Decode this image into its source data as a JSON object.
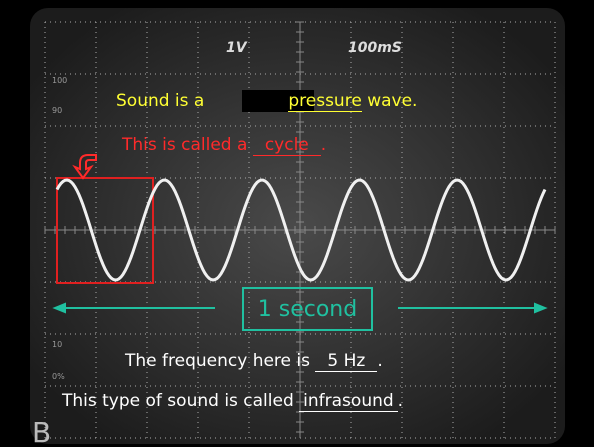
{
  "screen": {
    "volts": "1V",
    "time": "100mS",
    "scale_labels": [
      "100",
      "90",
      "10",
      "0%"
    ]
  },
  "line1": {
    "prefix": "Sound is a",
    "answer": "pressure",
    "suffix": "wave."
  },
  "line2": {
    "prefix": "This is called a",
    "answer": "cycle",
    "suffix": "."
  },
  "duration_label": "1 second",
  "line3": {
    "prefix": "The frequency here is",
    "answer": "5 Hz",
    "suffix": "."
  },
  "line4": {
    "prefix": "This type of sound is called",
    "answer": "infrasound",
    "suffix": "."
  },
  "corner_letter": "B"
}
